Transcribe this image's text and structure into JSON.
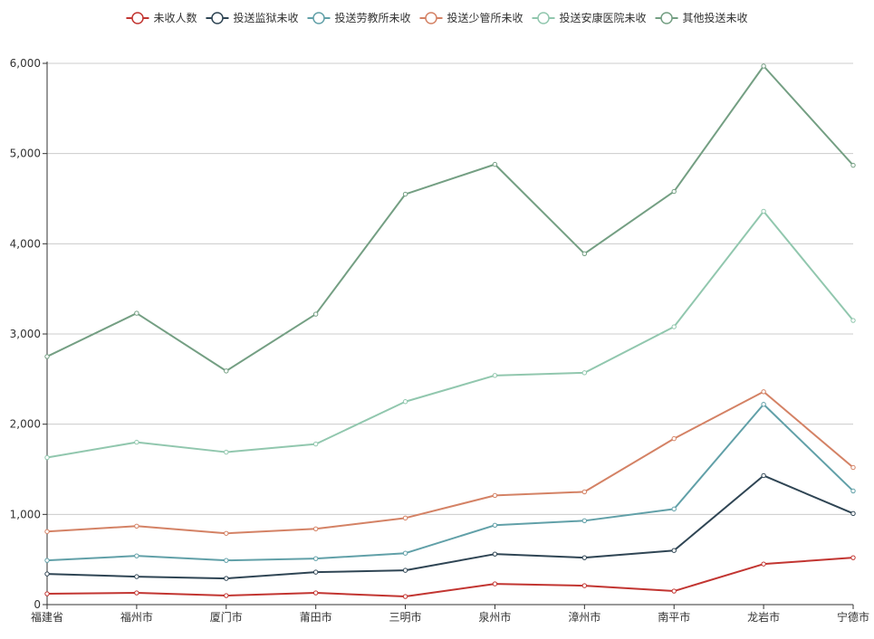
{
  "chart_data": {
    "type": "line",
    "categories": [
      "福建省",
      "福州市",
      "厦门市",
      "莆田市",
      "三明市",
      "泉州市",
      "漳州市",
      "南平市",
      "龙岩市",
      "宁德市"
    ],
    "ylim": [
      0,
      6000
    ],
    "yticks": [
      0,
      1000,
      2000,
      3000,
      4000,
      5000,
      6000
    ],
    "ytick_labels": [
      "0",
      "1,000",
      "2,000",
      "3,000",
      "4,000",
      "5,000",
      "6,000"
    ],
    "grid": true,
    "stacked": true,
    "legend_position": "top-center",
    "series": [
      {
        "name": "未收人数",
        "color": "#c23531",
        "values": [
          120,
          130,
          100,
          130,
          90,
          230,
          210,
          150,
          450,
          520
        ]
      },
      {
        "name": "投送监狱未收",
        "color": "#2f4554",
        "values": [
          220,
          180,
          190,
          230,
          290,
          330,
          310,
          450,
          980,
          490
        ]
      },
      {
        "name": "投送劳教所未收",
        "color": "#61a0a8",
        "values": [
          150,
          230,
          200,
          150,
          190,
          320,
          410,
          460,
          790,
          250
        ]
      },
      {
        "name": "投送少管所未收",
        "color": "#d48265",
        "values": [
          320,
          330,
          300,
          330,
          390,
          330,
          320,
          780,
          140,
          260
        ]
      },
      {
        "name": "投送安康医院未收",
        "color": "#91c7ae",
        "values": [
          820,
          930,
          900,
          940,
          1290,
          1330,
          1320,
          1240,
          2000,
          1630
        ]
      },
      {
        "name": "其他投送未收",
        "color": "#749f83",
        "values": [
          1120,
          1430,
          900,
          1440,
          2300,
          2340,
          1320,
          1500,
          1610,
          1720
        ]
      }
    ]
  }
}
